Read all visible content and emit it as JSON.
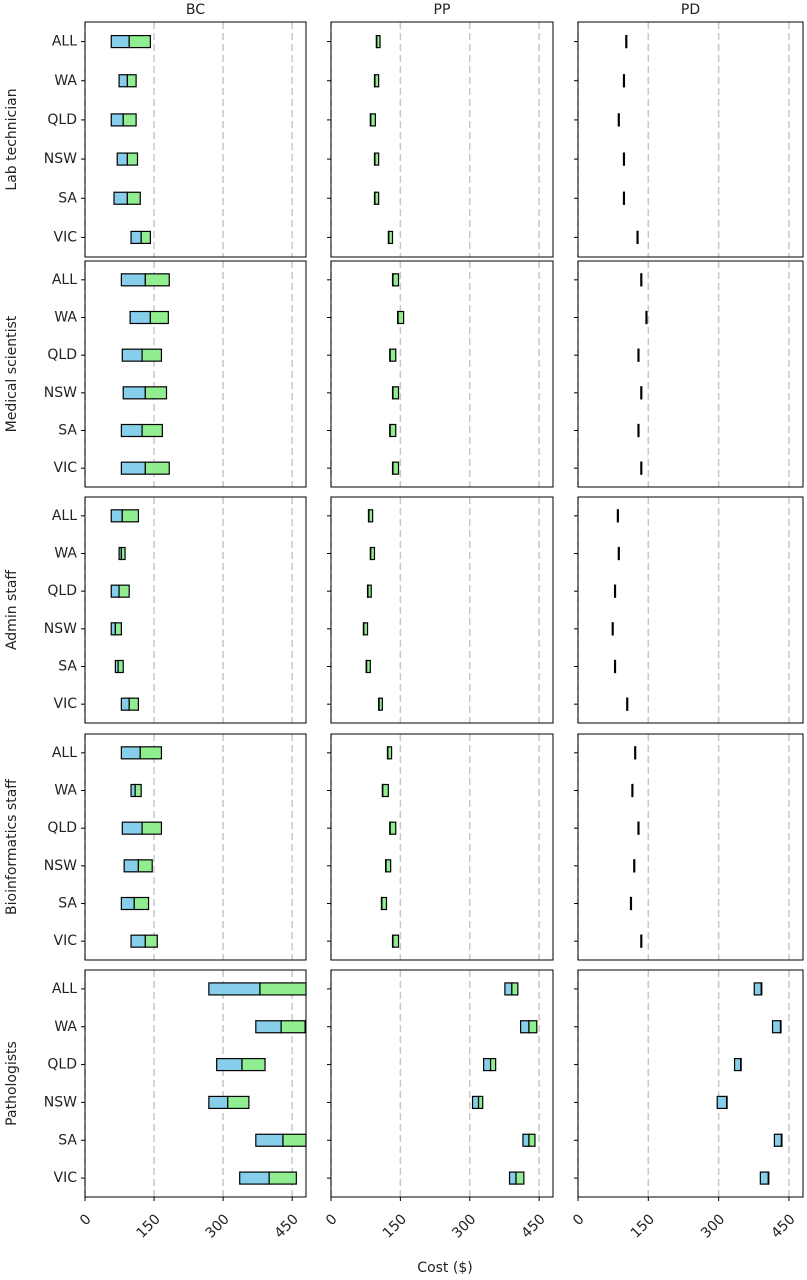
{
  "chart_data": {
    "type": "range_bar",
    "xlabel": "Cost ($)",
    "columns": [
      "BC",
      "PP",
      "PD"
    ],
    "rows": [
      "Lab technician",
      "Medical scientist",
      "Admin staff",
      "Bioinformatics staff",
      "Pathologists"
    ],
    "categories": [
      "ALL",
      "WA",
      "QLD",
      "NSW",
      "SA",
      "VIC"
    ],
    "xlim": [
      0,
      480
    ],
    "xticks": [
      0,
      150,
      300,
      450
    ],
    "grid": true,
    "low_color": "#87ceeb",
    "high_color": "#90ee90",
    "panels": [
      [
        {
          "low": [
            57,
            74,
            57,
            70,
            63,
            100
          ],
          "mid": [
            96,
            92,
            83,
            92,
            92,
            122
          ],
          "high": [
            142,
            111,
            111,
            114,
            120,
            142
          ]
        },
        {
          "low": [
            98,
            94,
            85,
            94,
            94,
            124
          ],
          "mid": [
            99,
            95,
            86,
            95,
            95,
            125
          ],
          "high": [
            106,
            103,
            96,
            103,
            103,
            133
          ]
        },
        {
          "low": [
            102,
            97,
            86,
            97,
            97,
            126
          ],
          "mid": [
            103,
            98,
            87,
            98,
            98,
            127
          ],
          "high": [
            104,
            99,
            88,
            99,
            99,
            128
          ]
        }
      ],
      [
        {
          "low": [
            79,
            98,
            81,
            83,
            79,
            79
          ],
          "mid": [
            131,
            142,
            124,
            131,
            124,
            131
          ],
          "high": [
            183,
            181,
            166,
            177,
            168,
            183
          ]
        },
        {
          "low": [
            133,
            144,
            127,
            133,
            127,
            133
          ],
          "mid": [
            134,
            145,
            128,
            134,
            128,
            134
          ],
          "high": [
            146,
            157,
            140,
            146,
            140,
            146
          ]
        },
        {
          "low": [
            134,
            145,
            128,
            134,
            128,
            134
          ],
          "mid": [
            135,
            146,
            129,
            135,
            129,
            135
          ],
          "high": [
            136,
            147,
            130,
            136,
            130,
            136
          ]
        }
      ],
      [
        {
          "low": [
            57,
            74,
            57,
            57,
            66,
            79
          ],
          "mid": [
            81,
            79,
            74,
            66,
            72,
            96
          ],
          "high": [
            116,
            87,
            96,
            79,
            83,
            116
          ]
        },
        {
          "low": [
            81,
            85,
            79,
            70,
            76,
            103
          ],
          "mid": [
            82,
            86,
            80,
            71,
            77,
            104
          ],
          "high": [
            90,
            94,
            87,
            79,
            85,
            111
          ]
        },
        {
          "low": [
            84,
            86,
            78,
            73,
            78,
            104
          ],
          "mid": [
            85,
            87,
            79,
            74,
            79,
            105
          ],
          "high": [
            86,
            88,
            80,
            75,
            80,
            106
          ]
        }
      ],
      [
        {
          "low": [
            79,
            100,
            81,
            85,
            79,
            100
          ],
          "mid": [
            120,
            109,
            124,
            116,
            107,
            131
          ],
          "high": [
            166,
            122,
            166,
            146,
            138,
            157
          ]
        },
        {
          "low": [
            122,
            111,
            127,
            118,
            109,
            133
          ],
          "mid": [
            123,
            112,
            128,
            119,
            110,
            134
          ],
          "high": [
            131,
            124,
            140,
            129,
            120,
            146
          ]
        },
        {
          "low": [
            121,
            115,
            128,
            119,
            112,
            134
          ],
          "mid": [
            122,
            116,
            129,
            120,
            113,
            135
          ],
          "high": [
            123,
            117,
            130,
            121,
            114,
            136
          ]
        }
      ],
      [
        {
          "low": [
            269,
            371,
            286,
            269,
            371,
            336
          ],
          "mid": [
            380,
            426,
            341,
            310,
            430,
            400
          ],
          "high": [
            480,
            478,
            391,
            356,
            480,
            459
          ]
        },
        {
          "low": [
            376,
            410,
            330,
            306,
            415,
            386
          ],
          "mid": [
            391,
            428,
            345,
            319,
            428,
            400
          ],
          "high": [
            404,
            445,
            356,
            328,
            441,
            417
          ]
        },
        {
          "low": [
            376,
            415,
            334,
            297,
            419,
            389
          ],
          "mid": [
            391,
            432,
            347,
            317,
            434,
            406
          ],
          "high": [
            392,
            433,
            348,
            318,
            435,
            407
          ]
        }
      ]
    ]
  }
}
